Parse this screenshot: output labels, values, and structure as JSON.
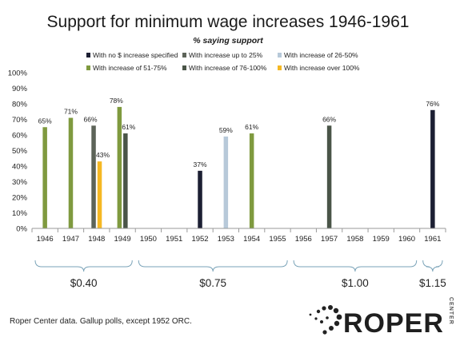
{
  "chart_data": {
    "type": "bar",
    "title": "Support for minimum wage increases 1946-1961",
    "subtitle": "% saying support",
    "ylim": [
      0,
      100
    ],
    "y_ticks": [
      "0%",
      "10%",
      "20%",
      "30%",
      "40%",
      "50%",
      "60%",
      "70%",
      "80%",
      "90%",
      "100%"
    ],
    "categories": [
      "1946",
      "1947",
      "1948",
      "1949",
      "1950",
      "1951",
      "1952",
      "1953",
      "1954",
      "1955",
      "1956",
      "1957",
      "1958",
      "1959",
      "1960",
      "1961"
    ],
    "legend_position": "top",
    "grid": false,
    "series": [
      {
        "name": "With no $ increase specified",
        "color": "#1c1f33",
        "points": [
          {
            "x": "1952",
            "value": 37,
            "label": "37%"
          },
          {
            "x": "1961",
            "value": 76,
            "label": "76%"
          }
        ]
      },
      {
        "name": "With increase up to 25%",
        "color": "#5d6459",
        "points": [
          {
            "x": "1948",
            "value": 66,
            "label": "66%"
          }
        ]
      },
      {
        "name": "With increase of 26-50%",
        "color": "#b7c9d9",
        "points": [
          {
            "x": "1953",
            "value": 59,
            "label": "59%"
          }
        ]
      },
      {
        "name": "With increase of 51-75%",
        "color": "#7f9a3f",
        "points": [
          {
            "x": "1946",
            "value": 65,
            "label": "65%"
          },
          {
            "x": "1947",
            "value": 71,
            "label": "71%"
          },
          {
            "x": "1949",
            "value": 78,
            "label": "78%"
          },
          {
            "x": "1954",
            "value": 61,
            "label": "61%"
          }
        ]
      },
      {
        "name": "With increase of 76-100%",
        "color": "#4a5548",
        "points": [
          {
            "x": "1949",
            "value": 61,
            "label": "61%"
          },
          {
            "x": "1957",
            "value": 66,
            "label": "66%"
          }
        ]
      },
      {
        "name": "With increase over 100%",
        "color": "#f5b823",
        "points": [
          {
            "x": "1948",
            "value": 43,
            "label": "43%"
          }
        ]
      }
    ],
    "groups": [
      {
        "label": "$0.40",
        "from": "1946",
        "to": "1949"
      },
      {
        "label": "$0.75",
        "from": "1950",
        "to": "1955"
      },
      {
        "label": "$1.00",
        "from": "1956",
        "to": "1960"
      },
      {
        "label": "$1.15",
        "from": "1961",
        "to": "1961"
      }
    ]
  },
  "source_note": "Roper Center data. Gallup polls, except 1952 ORC.",
  "logo": {
    "name": "ROPER",
    "sub": "CENTER"
  }
}
